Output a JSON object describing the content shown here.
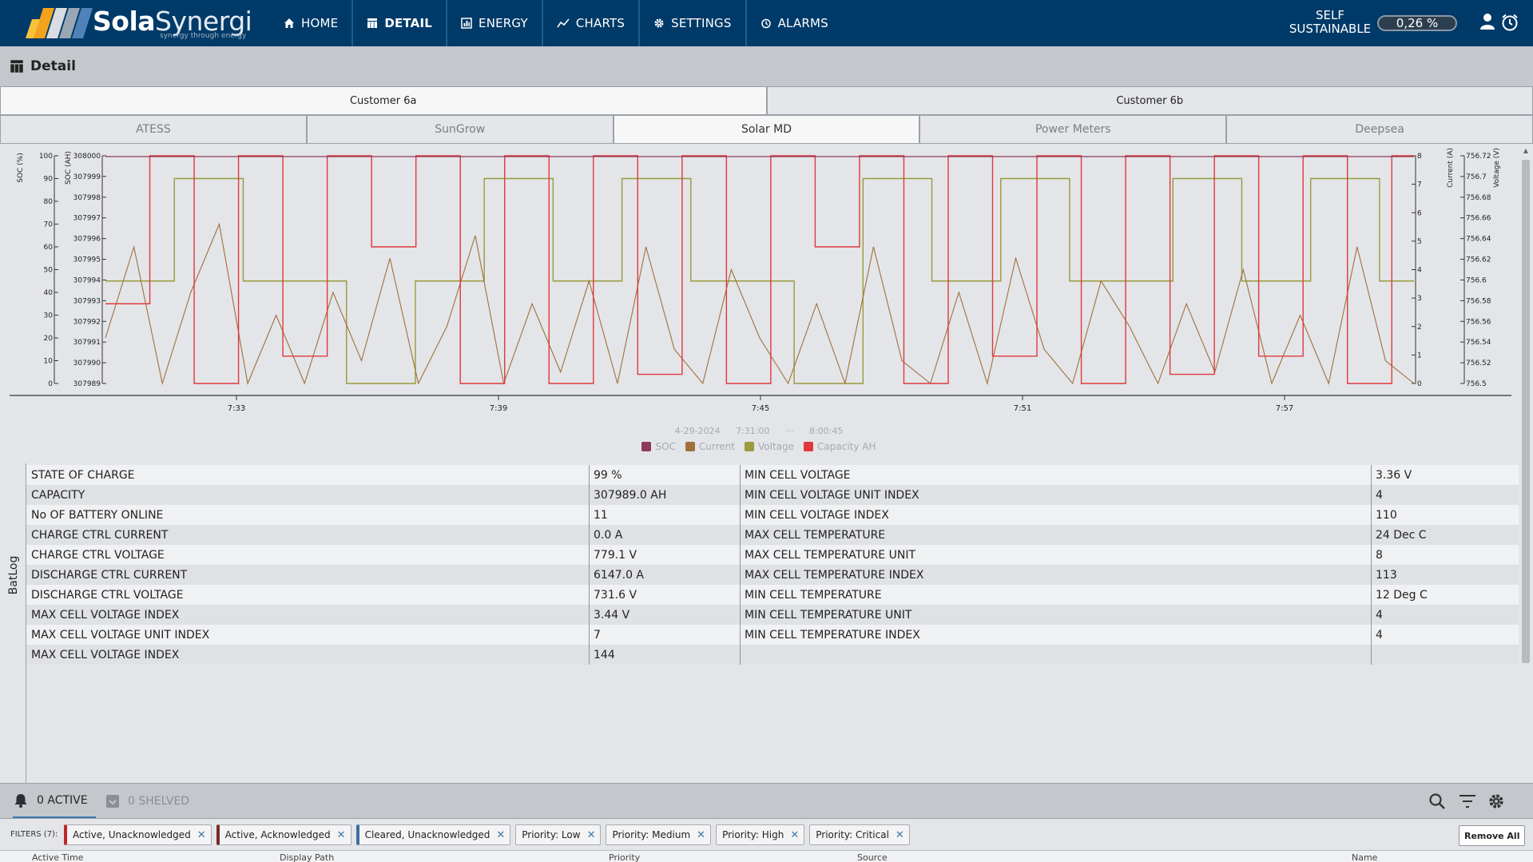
{
  "brand": {
    "name_bold": "Sola",
    "name_thin": "Synergi",
    "tagline": "synergy through energy"
  },
  "nav": {
    "items": [
      {
        "label": "HOME",
        "icon": "home-icon"
      },
      {
        "label": "DETAIL",
        "icon": "table-icon",
        "active": true
      },
      {
        "label": "ENERGY",
        "icon": "bar-chart-icon"
      },
      {
        "label": "CHARTS",
        "icon": "line-chart-icon"
      },
      {
        "label": "SETTINGS",
        "icon": "gear-icon"
      },
      {
        "label": "ALARMS",
        "icon": "alarm-clock-icon"
      }
    ],
    "self_sustainable_label": "SELF SUSTAINABLE",
    "self_sustainable_value": "0,26 %"
  },
  "page": {
    "title": "Detail"
  },
  "customer_tabs": [
    "Customer 6a",
    "Customer 6b"
  ],
  "device_tabs": [
    "ATESS",
    "SunGrow",
    "Solar MD",
    "Power Meters",
    "Deepsea"
  ],
  "chart_data": {
    "type": "line",
    "range": {
      "date": "4-29-2024",
      "start": "7:31:00",
      "end": "8:00:45"
    },
    "x_ticks": [
      "7:33",
      "7:39",
      "7:45",
      "7:51",
      "7:57"
    ],
    "axes": {
      "soc_pct": {
        "label": "SOC (%)",
        "ticks": [
          "100",
          "90",
          "80",
          "70",
          "60",
          "50",
          "40",
          "30",
          "20",
          "10",
          "0"
        ]
      },
      "soc_ah": {
        "label": "SOC (AH)",
        "ticks": [
          "308000",
          "307999",
          "307998",
          "307997",
          "307996",
          "307995",
          "307994",
          "307993",
          "307992",
          "307991",
          "307990",
          "307989"
        ]
      },
      "current": {
        "label": "Current (A)",
        "ticks": [
          "8",
          "7",
          "6",
          "5",
          "4",
          "3",
          "2",
          "1",
          "0"
        ]
      },
      "voltage": {
        "label": "Voltage (V)",
        "ticks": [
          "756.72",
          "756.7",
          "756.68",
          "756.66",
          "756.64",
          "756.62",
          "756.6",
          "756.58",
          "756.56",
          "756.54",
          "756.52",
          "756.5"
        ]
      }
    },
    "legend": [
      {
        "name": "SOC",
        "color": "#8e3a59"
      },
      {
        "name": "Current",
        "color": "#a0703c"
      },
      {
        "name": "Voltage",
        "color": "#9a9a3e"
      },
      {
        "name": "Capacity AH",
        "color": "#e0383d"
      }
    ],
    "series_approx": {
      "capacity_ah_pct": [
        35,
        35,
        100,
        100,
        0,
        0,
        100,
        100,
        12,
        12,
        100,
        100,
        60,
        60,
        100,
        100,
        0,
        0,
        100,
        100,
        0,
        0,
        100,
        100,
        4,
        4,
        100,
        100,
        0,
        0,
        100,
        100,
        60,
        60,
        100,
        100,
        0,
        0,
        100,
        100,
        12,
        12,
        100,
        100,
        0,
        0,
        100,
        100,
        4,
        4,
        100,
        100,
        12,
        12,
        100,
        100,
        0,
        0,
        100,
        100
      ],
      "voltage_pct": [
        45,
        45,
        90,
        90,
        45,
        45,
        45,
        0,
        0,
        45,
        45,
        90,
        90,
        45,
        45,
        90,
        90,
        45,
        45,
        45,
        0,
        0,
        90,
        90,
        45,
        45,
        90,
        90,
        45,
        45,
        45,
        90,
        90,
        45,
        45,
        90,
        90,
        45,
        45
      ],
      "current_pct": [
        20,
        60,
        0,
        40,
        70,
        0,
        30,
        0,
        40,
        10,
        55,
        0,
        25,
        65,
        0,
        35,
        5,
        45,
        0,
        60,
        15,
        0,
        50,
        20,
        0,
        35,
        0,
        60,
        10,
        0,
        40,
        0,
        55,
        15,
        0,
        45,
        25,
        0,
        35,
        5,
        50,
        0,
        30,
        0,
        60,
        10,
        0
      ]
    }
  },
  "batlog": {
    "side_label": "BatLog",
    "left": [
      {
        "label": "STATE OF CHARGE",
        "value": "99 %"
      },
      {
        "label": "CAPACITY",
        "value": "307989.0 AH"
      },
      {
        "label": "No OF BATTERY ONLINE",
        "value": "11"
      },
      {
        "label": "CHARGE CTRL CURRENT",
        "value": "0.0 A"
      },
      {
        "label": "CHARGE CTRL VOLTAGE",
        "value": "779.1 V"
      },
      {
        "label": "DISCHARGE CTRL CURRENT",
        "value": "6147.0 A"
      },
      {
        "label": "DISCHARGE CTRL VOLTAGE",
        "value": "731.6 V"
      },
      {
        "label": "MAX CELL VOLTAGE INDEX",
        "value": "3.44 V"
      },
      {
        "label": "MAX CELL VOLTAGE UNIT INDEX",
        "value": "7"
      },
      {
        "label": "MAX CELL VOLTAGE INDEX",
        "value": "144"
      }
    ],
    "right": [
      {
        "label": "MIN CELL VOLTAGE",
        "value": "3.36 V"
      },
      {
        "label": "MIN CELL VOLTAGE UNIT INDEX",
        "value": "4"
      },
      {
        "label": "MIN CELL VOLTAGE INDEX",
        "value": "110"
      },
      {
        "label": "MAX CELL TEMPERATURE",
        "value": "24 Dec C"
      },
      {
        "label": "MAX CELL TEMPERATURE UNIT",
        "value": "8"
      },
      {
        "label": "MAX CELL TEMPERATURE INDEX",
        "value": "113"
      },
      {
        "label": "MIN CELL TEMPERATURE",
        "value": "12 Deg C"
      },
      {
        "label": "MIN CELL TEMPERATURE UNIT",
        "value": "4"
      },
      {
        "label": "MIN CELL TEMPERATURE INDEX",
        "value": "4"
      },
      {
        "label": "",
        "value": ""
      }
    ]
  },
  "alarms": {
    "active_label": "0 ACTIVE",
    "shelved_label": "0 SHELVED",
    "filters_label": "FILTERS (7):",
    "filters": [
      {
        "label": "Active, Unacknowledged",
        "tone": "c-red"
      },
      {
        "label": "Active, Acknowledged",
        "tone": "c-dark"
      },
      {
        "label": "Cleared, Unacknowledged",
        "tone": "c-blue"
      },
      {
        "label": "Priority: Low",
        "tone": ""
      },
      {
        "label": "Priority: Medium",
        "tone": ""
      },
      {
        "label": "Priority: High",
        "tone": ""
      },
      {
        "label": "Priority: Critical",
        "tone": ""
      }
    ],
    "remove_all_label": "Remove All",
    "columns": [
      "Active Time",
      "Display Path",
      "Priority",
      "Source",
      "Name"
    ]
  }
}
